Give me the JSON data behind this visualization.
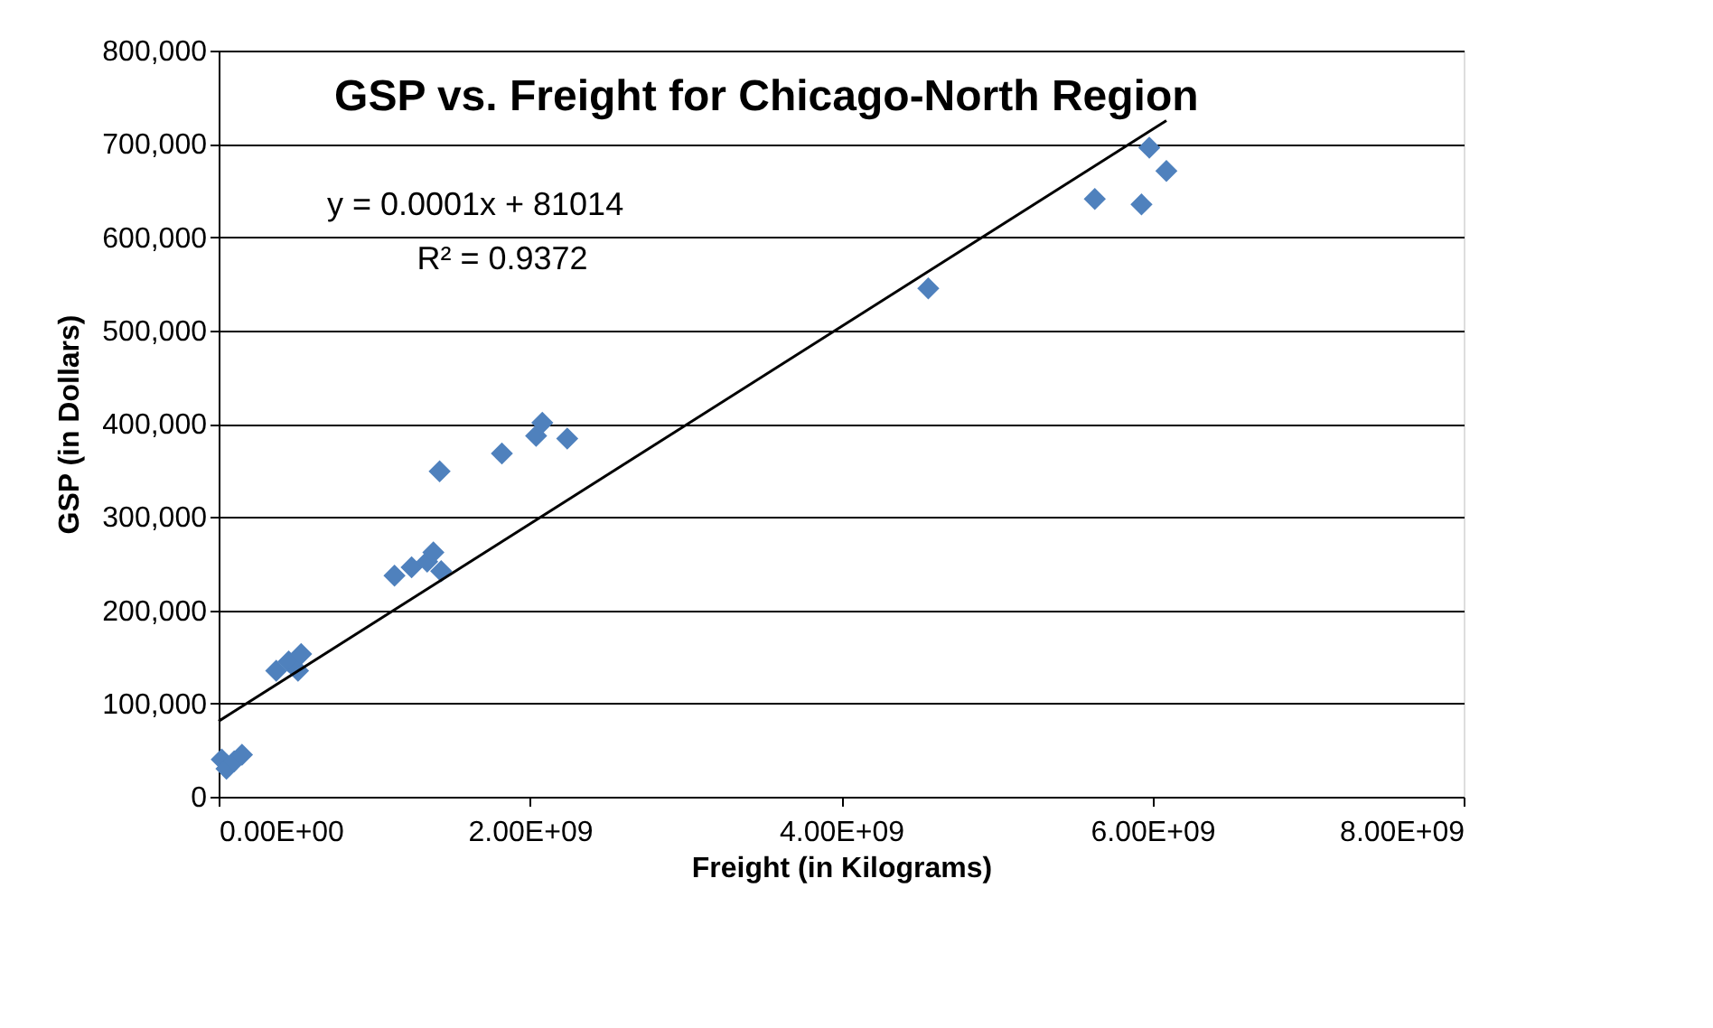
{
  "chart_data": {
    "type": "scatter",
    "title": "GSP vs. Freight for Chicago-North Region",
    "xlabel": "Freight (in Kilograms)",
    "ylabel": "GSP (in Dollars)",
    "series": [
      {
        "color": "#4f81bd",
        "x": [
          20000000,
          50000000,
          100000000,
          150000000,
          370000000,
          450000000,
          510000000,
          530000000,
          1130000000,
          1240000000,
          1340000000,
          1380000000,
          1430000000,
          1420000000,
          1820000000,
          2040000000,
          2080000000,
          2240000000,
          4560000000,
          5630000000,
          5930000000,
          5980000000,
          6090000000
        ],
        "values": [
          40000,
          30000,
          38000,
          45000,
          135000,
          145000,
          135000,
          153000,
          237000,
          246000,
          252000,
          262000,
          242000,
          349000,
          368000,
          387000,
          401000,
          384000,
          545000,
          641000,
          635000,
          696000,
          671000
        ]
      },
      {
        "type": "line",
        "marker": "none",
        "color": "#000000",
        "x": [
          0,
          6090000000
        ],
        "values": [
          81000,
          725000
        ]
      }
    ],
    "xlim": [
      0,
      8000000000
    ],
    "xticks": [
      {
        "value": 0,
        "label": "0.00E+00"
      },
      {
        "value": 2000000000,
        "label": "2.00E+09"
      },
      {
        "value": 4000000000,
        "label": "4.00E+09"
      },
      {
        "value": 6000000000,
        "label": "6.00E+09"
      },
      {
        "value": 8000000000,
        "label": "8.00E+09"
      }
    ],
    "ylim": [
      0,
      800000
    ],
    "yticks": [
      0,
      {
        "value": 100000,
        "label": "100,000"
      },
      {
        "value": 200000,
        "label": "200,000"
      },
      {
        "value": 300000,
        "label": "300,000"
      },
      {
        "value": 400000,
        "label": "400,000"
      },
      {
        "value": 500000,
        "label": "500,000"
      },
      {
        "value": 600000,
        "label": "600,000"
      },
      {
        "value": 700000,
        "label": "700,000"
      },
      {
        "value": 800000,
        "label": "800,000"
      }
    ],
    "annotations": [
      "y = 0.0001x + 81014",
      "R² = 0.9372"
    ],
    "grid": "y",
    "marker": "diamond"
  }
}
